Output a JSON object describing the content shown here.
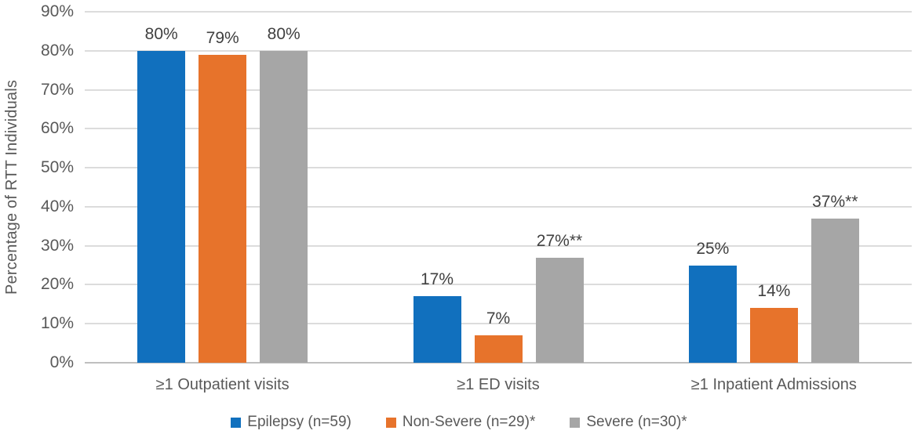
{
  "chart_data": {
    "type": "bar",
    "title": "",
    "xlabel": "",
    "ylabel": "Percentage of RTT Individuals",
    "ylim": [
      0,
      90
    ],
    "ytick_step": 10,
    "ytick_suffix": "%",
    "grid": true,
    "legend_position": "bottom",
    "categories": [
      "≥1 Outpatient visits",
      "≥1 ED visits",
      "≥1 Inpatient Admissions"
    ],
    "series": [
      {
        "name": "Epilepsy (n=59)",
        "color": "#1170BE",
        "values": [
          80,
          17,
          25
        ],
        "labels": [
          "80%",
          "17%",
          "25%"
        ]
      },
      {
        "name": "Non-Severe (n=29)*",
        "color": "#E7732B",
        "values": [
          79,
          7,
          14
        ],
        "labels": [
          "79%",
          "7%",
          "14%"
        ]
      },
      {
        "name": "Severe (n=30)*",
        "color": "#A6A6A6",
        "values": [
          80,
          27,
          37
        ],
        "labels": [
          "80%",
          "27%**",
          "37%**"
        ]
      }
    ],
    "colors": {
      "gridline": "#dcdcdc",
      "axis_line": "#bfbfbf",
      "tick_text": "#595959",
      "data_label_text": "#404040"
    }
  }
}
